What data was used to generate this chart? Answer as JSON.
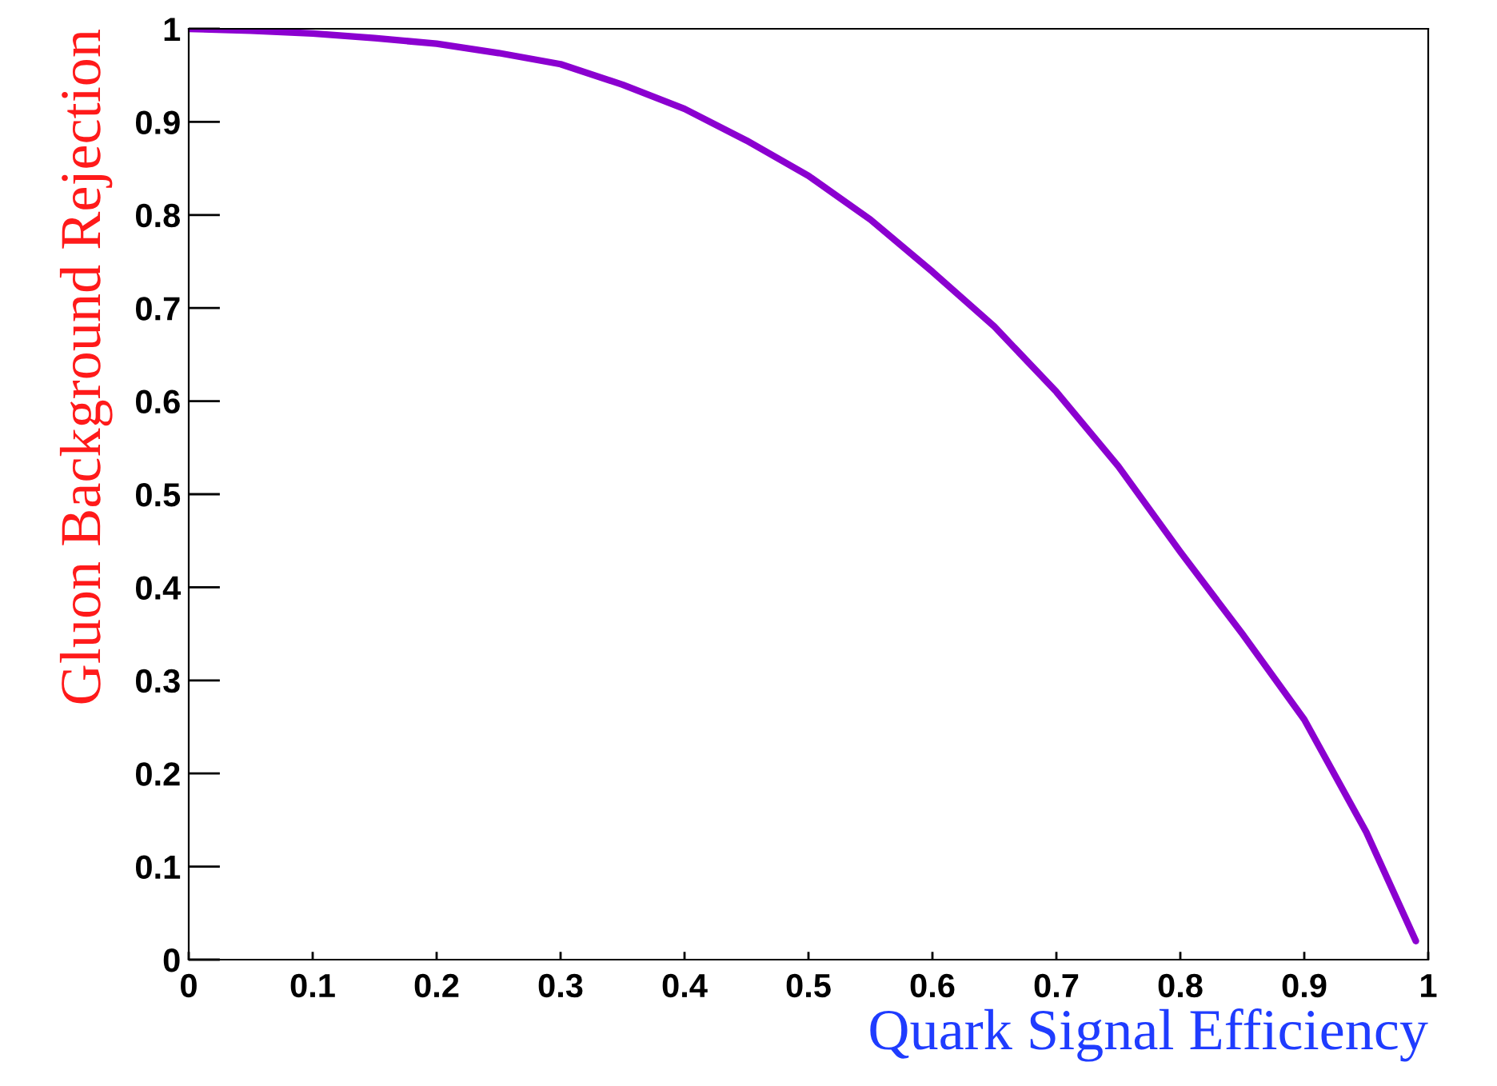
{
  "chart_data": {
    "type": "line",
    "xlabel": "Quark Signal Efficiency",
    "ylabel": "Gluon Background Rejection",
    "series": [
      {
        "color": "#8b00d0",
        "x": [
          0,
          0.05,
          0.1,
          0.15,
          0.2,
          0.25,
          0.3,
          0.35,
          0.4,
          0.45,
          0.5,
          0.55,
          0.6,
          0.65,
          0.7,
          0.75,
          0.8,
          0.85,
          0.9,
          0.95,
          0.99
        ],
        "values": [
          1.0,
          0.998,
          0.995,
          0.99,
          0.984,
          0.974,
          0.962,
          0.94,
          0.914,
          0.88,
          0.842,
          0.795,
          0.739,
          0.68,
          0.61,
          0.53,
          0.438,
          0.35,
          0.258,
          0.137,
          0.02
        ]
      }
    ],
    "xlim": [
      0,
      1
    ],
    "ylim": [
      0,
      1
    ],
    "xticks": [
      0,
      0.1,
      0.2,
      0.3,
      0.4,
      0.5,
      0.6,
      0.7,
      0.8,
      0.9,
      1
    ],
    "yticks": [
      0,
      0.1,
      0.2,
      0.3,
      0.4,
      0.5,
      0.6,
      0.7,
      0.8,
      0.9,
      1
    ],
    "grid": false,
    "legend": false,
    "marker": "none",
    "line_style": "solid"
  }
}
